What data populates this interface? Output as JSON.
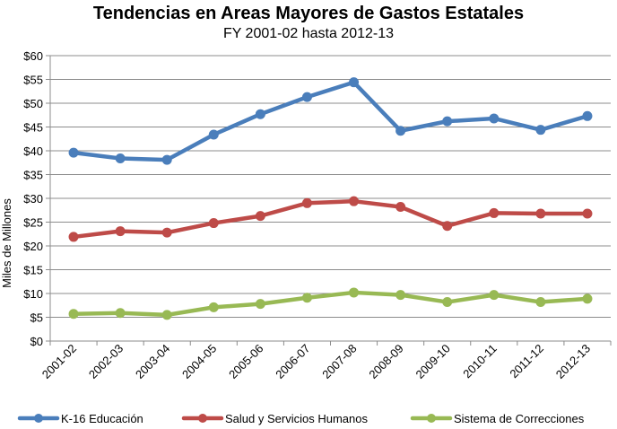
{
  "chart_data": {
    "type": "line",
    "title": "Tendencias en Areas Mayores de Gastos Estatales",
    "subtitle": "FY 2001-02 hasta 2012-13",
    "ylabel": "Miles de Millones",
    "xlabel": "",
    "ylim": [
      0,
      60
    ],
    "ytick_values": [
      0,
      5,
      10,
      15,
      20,
      25,
      30,
      35,
      40,
      45,
      50,
      55,
      60
    ],
    "ytick_labels": [
      "$0",
      "$5",
      "$10",
      "$15",
      "$20",
      "$25",
      "$30",
      "$35",
      "$40",
      "$45",
      "$50",
      "$55",
      "$60"
    ],
    "grid": "horizontal",
    "legend_position": "bottom",
    "categories": [
      "2001-02",
      "2002-03",
      "2003-04",
      "2004-05",
      "2005-06",
      "2006-07",
      "2007-08",
      "2008-09",
      "2009-10",
      "2010-11",
      "2011-12",
      "2012-13"
    ],
    "series": [
      {
        "name": "K-16 Educación",
        "color": "#4a7ebb",
        "values": [
          39.6,
          38.4,
          38.1,
          43.4,
          47.7,
          51.3,
          54.4,
          44.2,
          46.2,
          46.8,
          44.4,
          47.3
        ]
      },
      {
        "name": "Salud y Servicios Humanos",
        "color": "#be4b48",
        "values": [
          21.9,
          23.1,
          22.8,
          24.8,
          26.3,
          29.0,
          29.4,
          28.2,
          24.2,
          26.9,
          26.8,
          26.8
        ]
      },
      {
        "name": "Sistema de Correcciones",
        "color": "#98b954",
        "values": [
          5.7,
          5.9,
          5.5,
          7.1,
          7.8,
          9.1,
          10.2,
          9.7,
          8.2,
          9.7,
          8.2,
          8.9
        ]
      }
    ]
  }
}
